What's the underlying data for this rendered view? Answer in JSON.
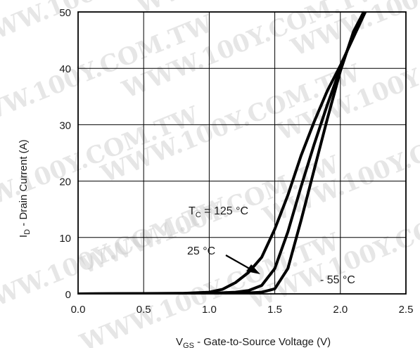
{
  "chart_data": {
    "type": "line",
    "xlabel": {
      "main": "V",
      "sub": "GS",
      "rest": "  -  Gate-to-Source Voltage (V)"
    },
    "ylabel": {
      "main": "I",
      "sub": "D",
      "rest": "  -  Drain Current (A)"
    },
    "xlim": [
      0.0,
      2.5
    ],
    "ylim": [
      0,
      50
    ],
    "x_ticks": [
      "0.0",
      "0.5",
      "1.0",
      "1.5",
      "2.0",
      "2.5"
    ],
    "y_ticks": [
      "0",
      "10",
      "20",
      "30",
      "40",
      "50"
    ],
    "grid": true,
    "series": [
      {
        "name": "TC = 125 °C",
        "x": [
          0.0,
          0.8,
          1.0,
          1.1,
          1.2,
          1.3,
          1.4,
          1.5,
          1.6,
          1.7,
          1.8,
          1.9,
          2.0,
          2.1,
          2.2
        ],
        "y": [
          0,
          0.1,
          0.3,
          0.8,
          2.0,
          3.8,
          6.5,
          11.5,
          17.5,
          24.5,
          30.5,
          36.0,
          40.5,
          45.5,
          50.5
        ]
      },
      {
        "name": "25 °C",
        "x": [
          0.0,
          1.0,
          1.2,
          1.3,
          1.4,
          1.5,
          1.6,
          1.7,
          1.8,
          1.9,
          2.0,
          2.1,
          2.2
        ],
        "y": [
          0,
          0.1,
          0.3,
          0.6,
          1.5,
          4.5,
          11.0,
          19.0,
          26.5,
          33.5,
          40.0,
          46.0,
          51.0
        ]
      },
      {
        "name": "- 55 °C",
        "x": [
          0.0,
          1.2,
          1.4,
          1.5,
          1.6,
          1.7,
          1.8,
          1.9,
          2.0,
          2.1,
          2.2
        ],
        "y": [
          0,
          0.05,
          0.3,
          0.9,
          4.5,
          13.0,
          22.0,
          31.0,
          39.5,
          46.5,
          51.0
        ]
      }
    ],
    "annotations": {
      "tc125": {
        "main": "T",
        "sub": "C",
        "rest": " = 125 °C"
      },
      "t25": "25 °C",
      "tm55": "- 55 °C"
    },
    "watermark": "WWW.100Y.COM.TW",
    "colors": {
      "curve": "#000000",
      "grid": "#000000",
      "frame": "#000000",
      "watermark": "#c9c9c9"
    }
  }
}
